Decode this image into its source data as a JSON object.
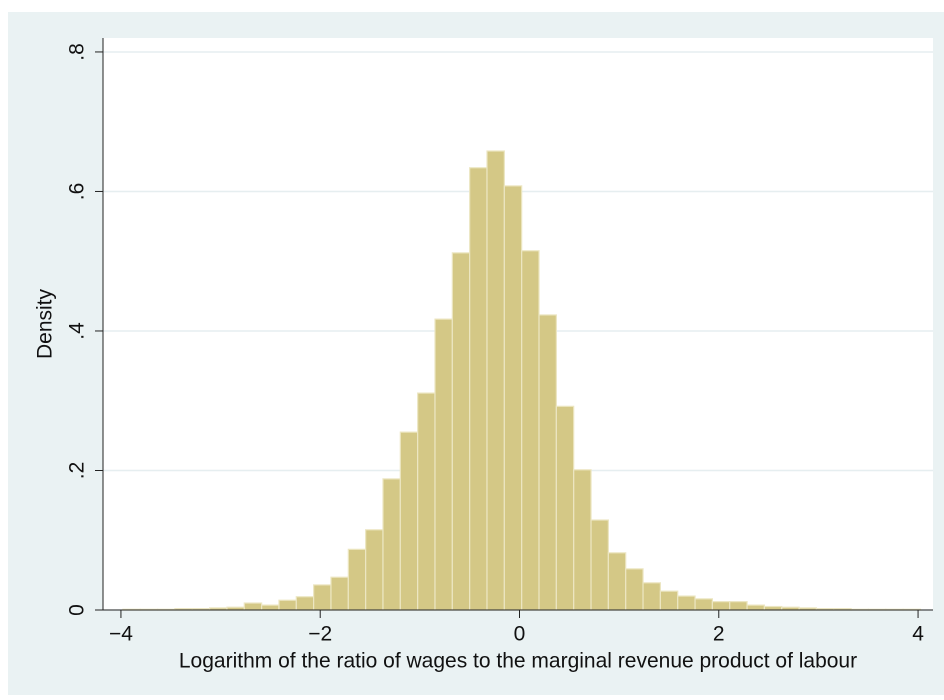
{
  "chart_data": {
    "type": "histogram",
    "xlabel": "Logarithm of the ratio of wages to the marginal revenue product of labour",
    "ylabel": "Density",
    "bins": [
      -3.98,
      -3.806,
      -3.632,
      -3.458,
      -3.284,
      -3.11,
      -2.936,
      -2.762,
      -2.588,
      -2.414,
      -2.24,
      -2.066,
      -1.892,
      -1.718,
      -1.544,
      -1.37,
      -1.196,
      -1.022,
      -0.848,
      -0.674,
      -0.5,
      -0.326,
      -0.152,
      0.022,
      0.196,
      0.37,
      0.544,
      0.718,
      0.892,
      1.066,
      1.24,
      1.414,
      1.588,
      1.762,
      1.936,
      2.11,
      2.284,
      2.458,
      2.632,
      2.806,
      2.98,
      3.154,
      3.328,
      3.502,
      3.676,
      3.85,
      4.024
    ],
    "values": [
      0.001,
      0.001,
      0.001,
      0.002,
      0.002,
      0.003,
      0.004,
      0.01,
      0.007,
      0.014,
      0.019,
      0.036,
      0.047,
      0.087,
      0.115,
      0.188,
      0.255,
      0.311,
      0.417,
      0.512,
      0.634,
      0.658,
      0.608,
      0.515,
      0.423,
      0.292,
      0.201,
      0.129,
      0.082,
      0.059,
      0.039,
      0.027,
      0.02,
      0.016,
      0.012,
      0.012,
      0.007,
      0.005,
      0.004,
      0.003,
      0.002,
      0.002,
      0.001,
      0.001,
      0.001,
      0.001
    ],
    "color": "#d4c886",
    "xlim": [
      -4.18,
      4.15
    ],
    "ylim": [
      0,
      0.82
    ],
    "xticks": [
      {
        "value": -4,
        "label": "−4"
      },
      {
        "value": -2,
        "label": "−2"
      },
      0,
      2,
      4
    ],
    "yticks": [
      0,
      {
        "value": 0.2,
        "label": ".2"
      },
      {
        "value": 0.4,
        "label": ".4"
      },
      {
        "value": 0.6,
        "label": ".6"
      },
      {
        "value": 0.8,
        "label": ".8"
      }
    ],
    "grid": true
  }
}
